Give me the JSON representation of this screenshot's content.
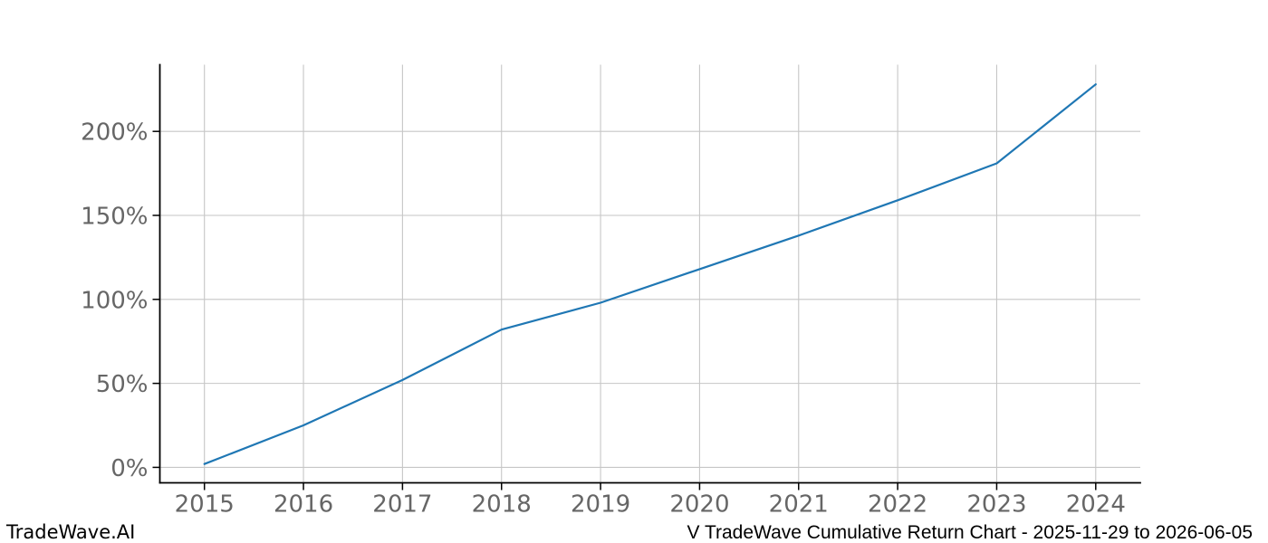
{
  "branding": {
    "watermark": "TradeWave.AI"
  },
  "footer": {
    "caption": "V TradeWave Cumulative Return Chart - 2025-11-29 to 2026-06-05"
  },
  "chart_data": {
    "type": "line",
    "title": "",
    "xlabel": "",
    "ylabel": "",
    "unit": "%",
    "x": [
      2015,
      2016,
      2017,
      2018,
      2019,
      2020,
      2021,
      2022,
      2023,
      2024
    ],
    "series": [
      {
        "name": "cumulative-return",
        "values": [
          2,
          25,
          52,
          82,
          98,
          118,
          138,
          159,
          181,
          228
        ]
      }
    ],
    "x_tick_labels": [
      "2015",
      "2016",
      "2017",
      "2018",
      "2019",
      "2020",
      "2021",
      "2022",
      "2023",
      "2024"
    ],
    "y_ticks": [
      0,
      50,
      100,
      150,
      200
    ],
    "y_tick_labels": [
      "0%",
      "50%",
      "100%",
      "150%",
      "200%"
    ],
    "xlim": [
      2014.55,
      2024.45
    ],
    "ylim": [
      -9.2,
      239.7
    ],
    "grid": true,
    "legend_position": "none",
    "colors": {
      "line": "#1f77b4",
      "grid": "#c6c6c6",
      "spine": "#000000",
      "tick": "#000000",
      "tick_label": "#666666"
    }
  }
}
